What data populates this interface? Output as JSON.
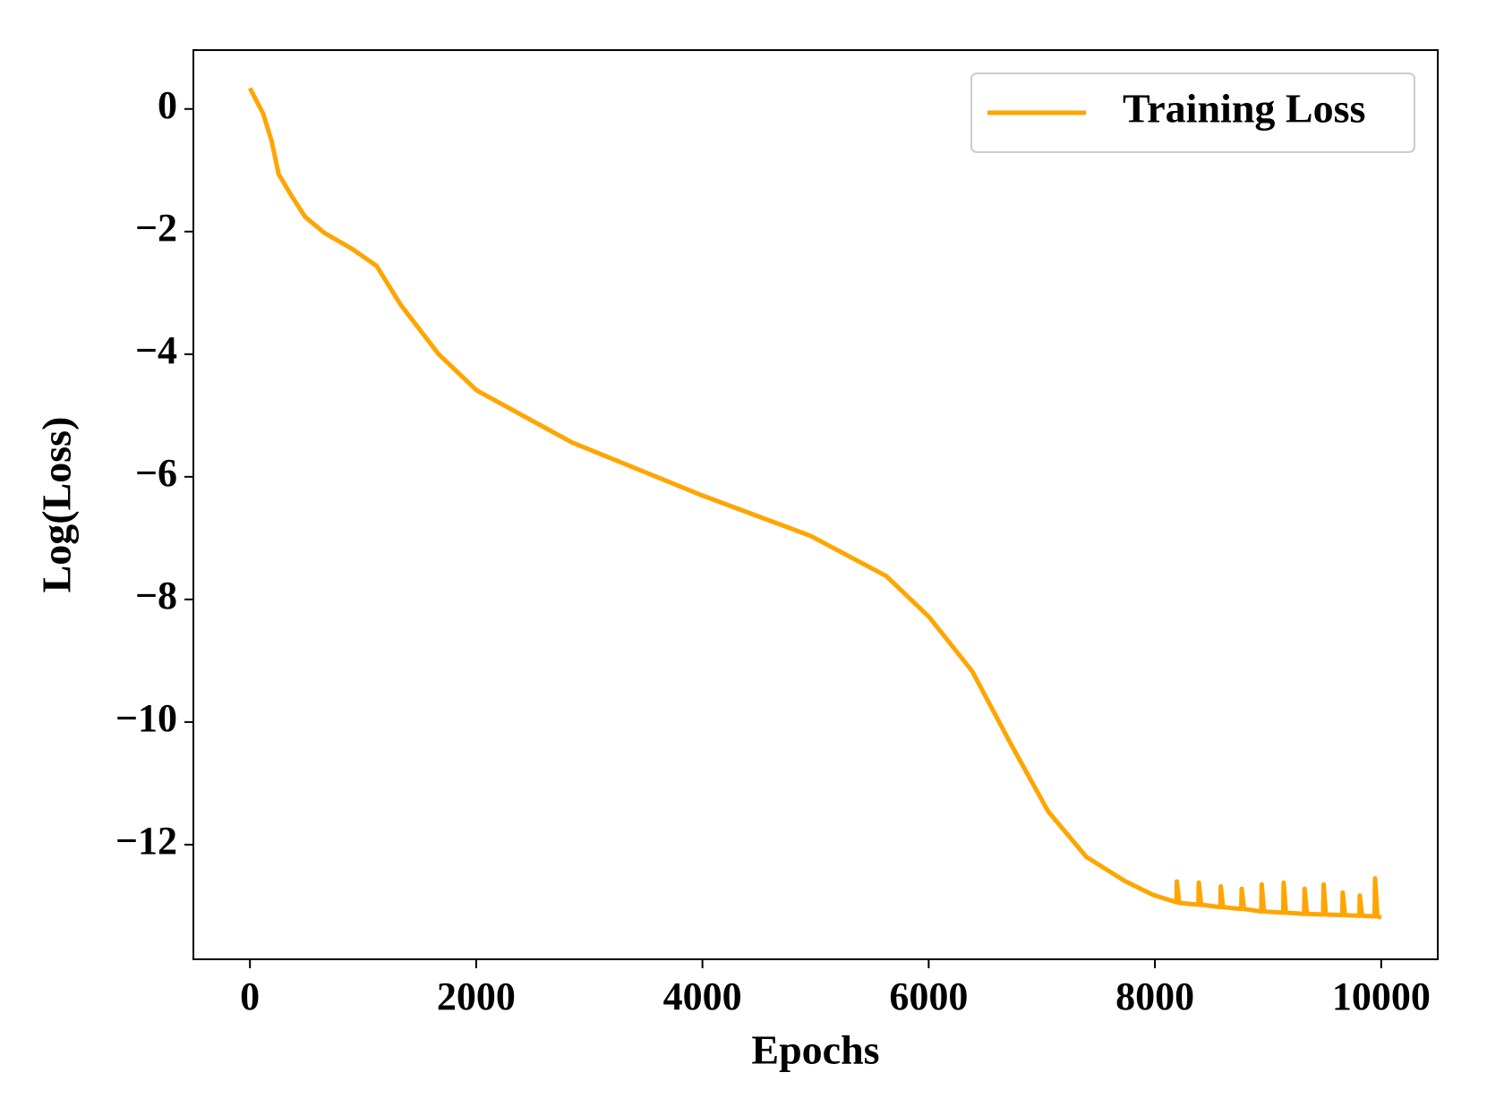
{
  "chart_data": {
    "type": "line",
    "xlabel": "Epochs",
    "ylabel": "Log(Loss)",
    "xlim": [
      -500,
      10500
    ],
    "ylim": [
      -13.87,
      0.96
    ],
    "xticks": [
      0,
      2000,
      4000,
      6000,
      8000,
      10000
    ],
    "yticks": [
      0,
      {
        "value": -2,
        "label": "−2"
      },
      {
        "value": -4,
        "label": "−4"
      },
      {
        "value": -6,
        "label": "−6"
      },
      {
        "value": -8,
        "label": "−8"
      },
      {
        "value": -10,
        "label": "−10"
      },
      {
        "value": -12,
        "label": "−12"
      }
    ],
    "legend": "upper right",
    "grid": false,
    "x": [
      0,
      118,
      194,
      253,
      362,
      488,
      657,
      910,
      1120,
      1331,
      1668,
      2004,
      2847,
      3992,
      4952,
      5626,
      6005,
      6384,
      6721,
      7057,
      7394,
      7731,
      7984,
      8190,
      8194,
      8214,
      8384,
      8388,
      8408,
      8578,
      8582,
      8602,
      8763,
      8767,
      8787,
      8940,
      8944,
      8964,
      9134,
      9138,
      9158,
      9319,
      9323,
      9343,
      9487,
      9491,
      9511,
      9656,
      9660,
      9680,
      9807,
      9811,
      9831,
      9942,
      9946,
      9966,
      10000
    ],
    "series": [
      {
        "name": "Training Loss",
        "color": "#ffa500",
        "values": [
          0.34,
          -0.08,
          -0.54,
          -1.06,
          -1.4,
          -1.76,
          -2.02,
          -2.29,
          -2.56,
          -3.19,
          -4.0,
          -4.59,
          -5.44,
          -6.3,
          -6.96,
          -7.62,
          -8.29,
          -9.17,
          -10.34,
          -11.46,
          -12.2,
          -12.59,
          -12.82,
          -12.94,
          -12.6,
          -12.95,
          -12.98,
          -12.62,
          -12.98,
          -13.02,
          -12.68,
          -13.02,
          -13.05,
          -12.72,
          -13.05,
          -13.09,
          -12.65,
          -13.09,
          -13.11,
          -12.62,
          -13.11,
          -13.13,
          -12.72,
          -13.13,
          -13.14,
          -12.65,
          -13.14,
          -13.15,
          -12.78,
          -13.15,
          -13.16,
          -12.83,
          -13.16,
          -13.17,
          -12.55,
          -13.17,
          -13.19
        ]
      }
    ]
  }
}
